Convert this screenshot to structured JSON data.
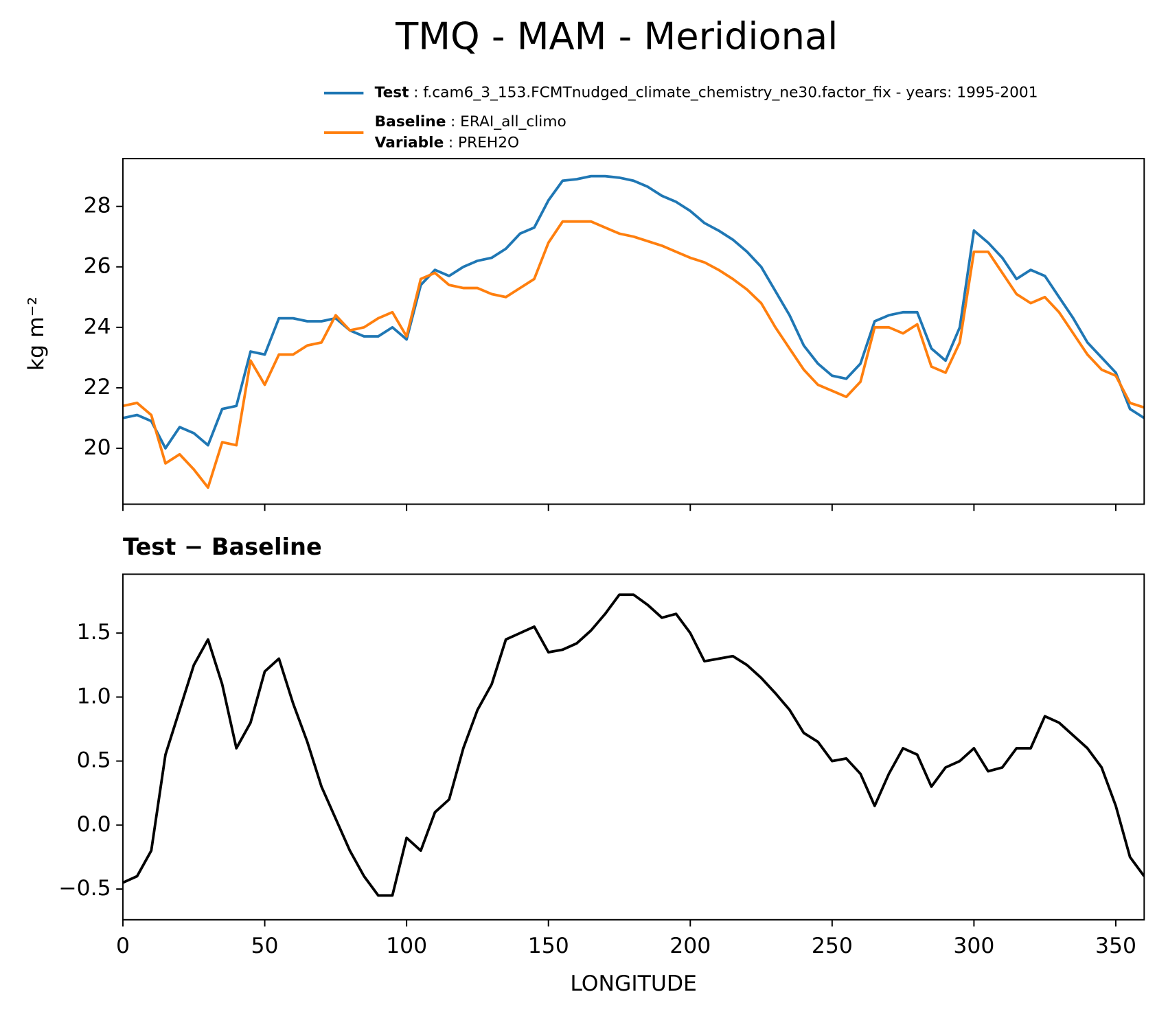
{
  "title": "TMQ - MAM - Meridional",
  "chart_data": [
    {
      "type": "line",
      "ylabel": "kg m⁻²",
      "x": [
        0,
        5,
        10,
        15,
        20,
        25,
        30,
        35,
        40,
        45,
        50,
        55,
        60,
        65,
        70,
        75,
        80,
        85,
        90,
        95,
        100,
        105,
        110,
        115,
        120,
        125,
        130,
        135,
        140,
        145,
        150,
        155,
        160,
        165,
        170,
        175,
        180,
        185,
        190,
        195,
        200,
        205,
        210,
        215,
        220,
        225,
        230,
        235,
        240,
        245,
        250,
        255,
        260,
        265,
        270,
        275,
        280,
        285,
        290,
        295,
        300,
        305,
        310,
        315,
        320,
        325,
        330,
        335,
        340,
        345,
        350,
        355,
        360
      ],
      "series": [
        {
          "name": "Test",
          "description": ": f.cam6_3_153.FCMTnudged_climate_chemistry_ne30.factor_fix - years: 1995-2001",
          "color": "#1f77b4",
          "values": [
            21.0,
            21.1,
            20.9,
            20.0,
            20.7,
            20.5,
            20.1,
            21.3,
            21.4,
            23.2,
            23.1,
            24.3,
            24.3,
            24.2,
            24.2,
            24.3,
            23.9,
            23.7,
            23.7,
            24.0,
            23.6,
            25.4,
            25.9,
            25.7,
            26.0,
            26.2,
            26.3,
            26.6,
            27.1,
            27.3,
            28.2,
            28.85,
            28.9,
            29.0,
            29.0,
            28.95,
            28.85,
            28.65,
            28.35,
            28.15,
            27.85,
            27.45,
            27.2,
            26.9,
            26.5,
            26.0,
            25.2,
            24.4,
            23.4,
            22.8,
            22.4,
            22.3,
            22.8,
            24.2,
            24.4,
            24.5,
            24.5,
            23.3,
            22.9,
            24.0,
            27.2,
            26.8,
            26.3,
            25.6,
            25.9,
            25.7,
            25.0,
            24.3,
            23.5,
            23.0,
            22.5,
            21.3,
            21.0
          ]
        },
        {
          "name": "Baseline",
          "description": ": ERAI_all_climo",
          "color": "#ff7f0e",
          "values": [
            21.4,
            21.5,
            21.1,
            19.5,
            19.8,
            19.3,
            18.7,
            20.2,
            20.1,
            22.9,
            22.1,
            23.1,
            23.1,
            23.4,
            23.5,
            24.4,
            23.9,
            24.0,
            24.3,
            24.5,
            23.7,
            25.6,
            25.8,
            25.4,
            25.3,
            25.3,
            25.1,
            25.0,
            25.3,
            25.6,
            26.8,
            27.5,
            27.5,
            27.5,
            27.3,
            27.1,
            27.0,
            26.85,
            26.7,
            26.5,
            26.3,
            26.15,
            25.9,
            25.6,
            25.25,
            24.8,
            24.0,
            23.3,
            22.6,
            22.1,
            21.9,
            21.7,
            22.2,
            24.0,
            24.0,
            23.8,
            24.1,
            22.7,
            22.5,
            23.5,
            26.5,
            26.5,
            25.8,
            25.1,
            24.8,
            25.0,
            24.5,
            23.8,
            23.1,
            22.6,
            22.4,
            21.5,
            21.35
          ]
        }
      ],
      "legend_note": {
        "name": "Variable",
        "text": ": PREH2O"
      },
      "xlim": [
        0,
        360
      ],
      "xticks": [
        0,
        50,
        100,
        150,
        200,
        250,
        300,
        350
      ],
      "show_xtick_labels": false,
      "ylim": [
        18.15,
        29.58
      ],
      "yticks": [
        20,
        22,
        24,
        26,
        28
      ]
    },
    {
      "type": "line",
      "title": "Test − Baseline",
      "xlabel": "LONGITUDE",
      "x": [
        0,
        5,
        10,
        15,
        20,
        25,
        30,
        35,
        40,
        45,
        50,
        55,
        60,
        65,
        70,
        75,
        80,
        85,
        90,
        95,
        100,
        105,
        110,
        115,
        120,
        125,
        130,
        135,
        140,
        145,
        150,
        155,
        160,
        165,
        170,
        175,
        180,
        185,
        190,
        195,
        200,
        205,
        210,
        215,
        220,
        225,
        230,
        235,
        240,
        245,
        250,
        255,
        260,
        265,
        270,
        275,
        280,
        285,
        290,
        295,
        300,
        305,
        310,
        315,
        320,
        325,
        330,
        335,
        340,
        345,
        350,
        355,
        360
      ],
      "series": [
        {
          "color": "#000000",
          "values": [
            -0.45,
            -0.4,
            -0.2,
            0.55,
            0.9,
            1.25,
            1.45,
            1.1,
            0.6,
            0.8,
            1.2,
            1.3,
            0.95,
            0.65,
            0.3,
            0.05,
            -0.2,
            -0.4,
            -0.55,
            -0.55,
            -0.1,
            -0.2,
            0.1,
            0.2,
            0.6,
            0.9,
            1.1,
            1.45,
            1.5,
            1.55,
            1.35,
            1.37,
            1.42,
            1.52,
            1.65,
            1.8,
            1.8,
            1.72,
            1.62,
            1.65,
            1.5,
            1.28,
            1.3,
            1.32,
            1.25,
            1.15,
            1.03,
            0.9,
            0.72,
            0.65,
            0.5,
            0.52,
            0.4,
            0.15,
            0.4,
            0.6,
            0.55,
            0.3,
            0.45,
            0.5,
            0.6,
            0.42,
            0.45,
            0.6,
            0.6,
            0.85,
            0.8,
            0.7,
            0.6,
            0.45,
            0.15,
            -0.25,
            -0.4
          ]
        }
      ],
      "xlim": [
        0,
        360
      ],
      "xticks": [
        0,
        50,
        100,
        150,
        200,
        250,
        300,
        350
      ],
      "show_xtick_labels": true,
      "ylim": [
        -0.74,
        1.96
      ],
      "yticks": [
        {
          "value": -0.5,
          "label": "−0.5"
        },
        {
          "value": 0,
          "label": "0.0"
        },
        0.5,
        {
          "value": 1,
          "label": "1.0"
        },
        1.5
      ]
    }
  ]
}
